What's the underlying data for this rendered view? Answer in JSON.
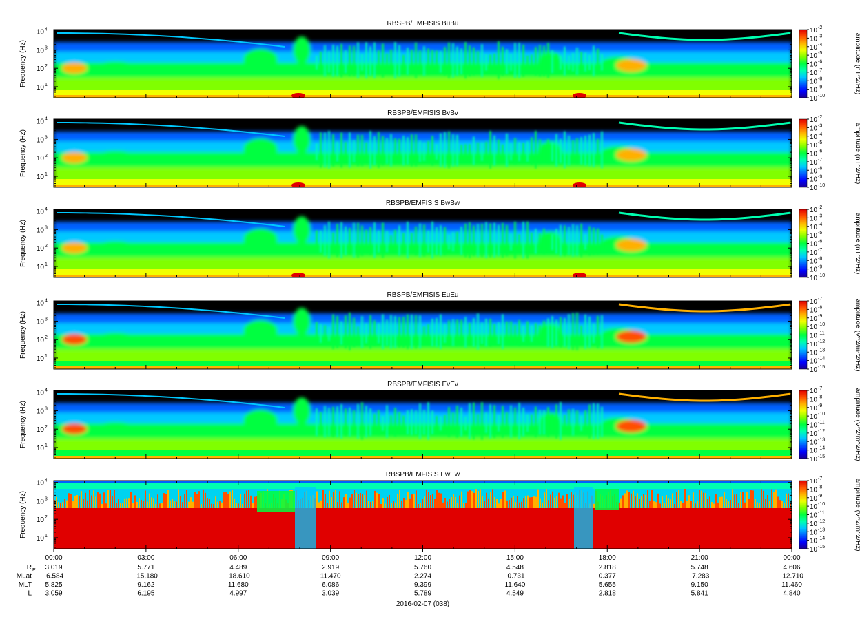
{
  "chart_data": {
    "type": "heatmap",
    "panels": [
      {
        "title": "RBSPB/EMFISIS  BuBu",
        "ylabel": "Frequency (Hz)",
        "yticks": [
          "10",
          "10",
          "10",
          "10"
        ],
        "yexp": [
          "1",
          "2",
          "3",
          "4"
        ],
        "cbar_label": "amplitude (nT^2/Hz)",
        "cbar_ticks": [
          "10",
          "10",
          "10",
          "10",
          "10",
          "10",
          "10",
          "10",
          "10"
        ],
        "cbar_exp": [
          "-2",
          "-3",
          "-4",
          "-5",
          "-6",
          "-7",
          "-8",
          "-9",
          "-10"
        ],
        "kind": "B"
      },
      {
        "title": "RBSPB/EMFISIS  BvBv",
        "ylabel": "Frequency (Hz)",
        "yticks": [
          "10",
          "10",
          "10",
          "10"
        ],
        "yexp": [
          "1",
          "2",
          "3",
          "4"
        ],
        "cbar_label": "amplitude (nT^2/Hz)",
        "cbar_ticks": [
          "10",
          "10",
          "10",
          "10",
          "10",
          "10",
          "10",
          "10",
          "10"
        ],
        "cbar_exp": [
          "-2",
          "-3",
          "-4",
          "-5",
          "-6",
          "-7",
          "-8",
          "-9",
          "-10"
        ],
        "kind": "B"
      },
      {
        "title": "RBSPB/EMFISIS  BwBw",
        "ylabel": "Frequency (Hz)",
        "yticks": [
          "10",
          "10",
          "10",
          "10"
        ],
        "yexp": [
          "1",
          "2",
          "3",
          "4"
        ],
        "cbar_label": "amplitude (nT^2/Hz)",
        "cbar_ticks": [
          "10",
          "10",
          "10",
          "10",
          "10",
          "10",
          "10",
          "10",
          "10"
        ],
        "cbar_exp": [
          "-2",
          "-3",
          "-4",
          "-5",
          "-6",
          "-7",
          "-8",
          "-9",
          "-10"
        ],
        "kind": "B"
      },
      {
        "title": "RBSPB/EMFISIS  EuEu",
        "ylabel": "Frequency (Hz)",
        "yticks": [
          "10",
          "10",
          "10",
          "10"
        ],
        "yexp": [
          "1",
          "2",
          "3",
          "4"
        ],
        "cbar_label": "amplitude (V^2/m^2/Hz)",
        "cbar_ticks": [
          "10",
          "10",
          "10",
          "10",
          "10",
          "10",
          "10",
          "10",
          "10"
        ],
        "cbar_exp": [
          "-7",
          "-8",
          "-9",
          "-10",
          "-11",
          "-12",
          "-13",
          "-14",
          "-15"
        ],
        "kind": "E"
      },
      {
        "title": "RBSPB/EMFISIS  EvEv",
        "ylabel": "Frequency (Hz)",
        "yticks": [
          "10",
          "10",
          "10",
          "10"
        ],
        "yexp": [
          "1",
          "2",
          "3",
          "4"
        ],
        "cbar_label": "amplitude (V^2/m^2/Hz)",
        "cbar_ticks": [
          "10",
          "10",
          "10",
          "10",
          "10",
          "10",
          "10",
          "10",
          "10"
        ],
        "cbar_exp": [
          "-7",
          "-8",
          "-9",
          "-10",
          "-11",
          "-12",
          "-13",
          "-14",
          "-15"
        ],
        "kind": "E"
      },
      {
        "title": "RBSPB/EMFISIS  EwEw",
        "ylabel": "Frequency (Hz)",
        "yticks": [
          "10",
          "10",
          "10",
          "10"
        ],
        "yexp": [
          "1",
          "2",
          "3",
          "4"
        ],
        "cbar_label": "amplitude (V^2/m^2/Hz)",
        "cbar_ticks": [
          "10",
          "10",
          "10",
          "10",
          "10",
          "10",
          "10",
          "10",
          "10"
        ],
        "cbar_exp": [
          "-7",
          "-8",
          "-9",
          "-10",
          "-11",
          "-12",
          "-13",
          "-14",
          "-15"
        ],
        "kind": "W"
      }
    ],
    "x_ticks": [
      "00:00",
      "03:00",
      "06:00",
      "09:00",
      "12:00",
      "15:00",
      "18:00",
      "21:00",
      "00:00"
    ],
    "ephemeris": [
      {
        "label": "R",
        "sub": "E",
        "values": [
          "3.019",
          "5.771",
          "4.489",
          "2.919",
          "5.760",
          "4.548",
          "2.818",
          "5.748",
          "4.606"
        ]
      },
      {
        "label": "MLat",
        "sub": "",
        "values": [
          "-6.584",
          "-15.180",
          "-18.610",
          "11.470",
          "2.274",
          "-0.731",
          "0.377",
          "-7.283",
          "-12.710"
        ]
      },
      {
        "label": "MLT",
        "sub": "",
        "values": [
          "5.825",
          "9.162",
          "11.680",
          "6.086",
          "9.399",
          "11.640",
          "5.655",
          "9.150",
          "11.460"
        ]
      },
      {
        "label": "L",
        "sub": "",
        "values": [
          "3.059",
          "6.195",
          "4.997",
          "3.039",
          "5.789",
          "4.549",
          "2.818",
          "5.841",
          "4.840"
        ]
      }
    ],
    "date_label": "2016-02-07 (038)"
  },
  "colors": {
    "colormap": [
      "#1a0090",
      "#0000ff",
      "#0060ff",
      "#00c8ff",
      "#00ffb0",
      "#00ff40",
      "#80ff00",
      "#f0ff00",
      "#ffb000",
      "#ff5000",
      "#e00000"
    ],
    "gap": "#000000"
  }
}
